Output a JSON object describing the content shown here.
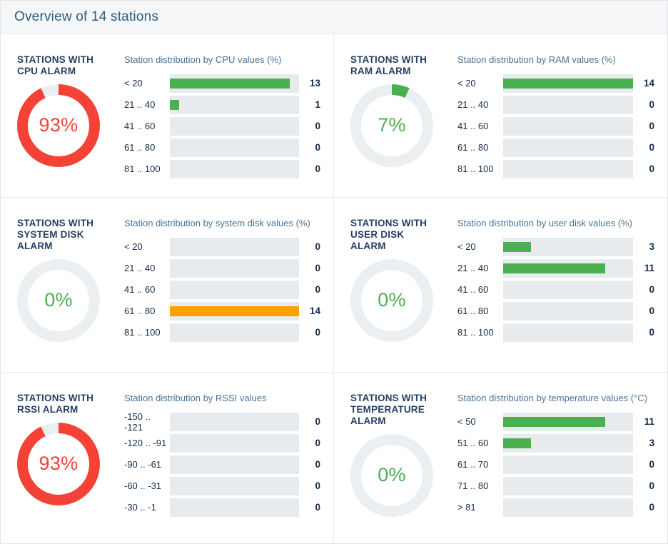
{
  "header": {
    "title": "Overview of 14 stations"
  },
  "total_stations": 14,
  "colors": {
    "green": "#4caf50",
    "red": "#f44336",
    "orange": "#ffa000",
    "donut_track": "#eceff1",
    "bar_track": "#e8ebee"
  },
  "panels": [
    {
      "alarm_title": "STATIONS WITH CPU ALARM",
      "percent": 93,
      "percent_label": "93%",
      "donut_color": "red",
      "percent_color": "red",
      "chart_title": "Station distribution by CPU values (%)",
      "max": 14,
      "rows": [
        {
          "label": "< 20",
          "value": 13,
          "color": "green"
        },
        {
          "label": "21 .. 40",
          "value": 1,
          "color": "green"
        },
        {
          "label": "41 .. 60",
          "value": 0,
          "color": "green"
        },
        {
          "label": "61 .. 80",
          "value": 0,
          "color": "green"
        },
        {
          "label": "81 .. 100",
          "value": 0,
          "color": "green"
        }
      ]
    },
    {
      "alarm_title": "STATIONS WITH RAM ALARM",
      "percent": 7,
      "percent_label": "7%",
      "donut_color": "green",
      "percent_color": "green",
      "chart_title": "Station distribution by RAM values (%)",
      "max": 14,
      "rows": [
        {
          "label": "< 20",
          "value": 14,
          "color": "green"
        },
        {
          "label": "21 .. 40",
          "value": 0,
          "color": "green"
        },
        {
          "label": "41 .. 60",
          "value": 0,
          "color": "green"
        },
        {
          "label": "61 .. 80",
          "value": 0,
          "color": "green"
        },
        {
          "label": "81 .. 100",
          "value": 0,
          "color": "green"
        }
      ]
    },
    {
      "alarm_title": "STATIONS WITH SYSTEM DISK ALARM",
      "percent": 0,
      "percent_label": "0%",
      "donut_color": "green",
      "percent_color": "green",
      "chart_title": "Station distribution by system disk values (%)",
      "max": 14,
      "rows": [
        {
          "label": "< 20",
          "value": 0,
          "color": "green"
        },
        {
          "label": "21 .. 40",
          "value": 0,
          "color": "green"
        },
        {
          "label": "41 .. 60",
          "value": 0,
          "color": "green"
        },
        {
          "label": "61 .. 80",
          "value": 14,
          "color": "orange"
        },
        {
          "label": "81 .. 100",
          "value": 0,
          "color": "green"
        }
      ]
    },
    {
      "alarm_title": "STATIONS WITH USER DISK ALARM",
      "percent": 0,
      "percent_label": "0%",
      "donut_color": "green",
      "percent_color": "green",
      "chart_title": "Station distribution by user disk values (%)",
      "max": 14,
      "rows": [
        {
          "label": "< 20",
          "value": 3,
          "color": "green"
        },
        {
          "label": "21 .. 40",
          "value": 11,
          "color": "green"
        },
        {
          "label": "41 .. 60",
          "value": 0,
          "color": "green"
        },
        {
          "label": "61 .. 80",
          "value": 0,
          "color": "green"
        },
        {
          "label": "81 .. 100",
          "value": 0,
          "color": "green"
        }
      ]
    },
    {
      "alarm_title": "STATIONS WITH RSSI ALARM",
      "percent": 93,
      "percent_label": "93%",
      "donut_color": "red",
      "percent_color": "red",
      "chart_title": "Station distribution by RSSI values",
      "max": 14,
      "rows": [
        {
          "label": "-150 .. -121",
          "value": 0,
          "color": "green"
        },
        {
          "label": "-120 .. -91",
          "value": 0,
          "color": "green"
        },
        {
          "label": "-90 .. -61",
          "value": 0,
          "color": "green"
        },
        {
          "label": "-60 .. -31",
          "value": 0,
          "color": "green"
        },
        {
          "label": "-30 .. -1",
          "value": 0,
          "color": "green"
        }
      ]
    },
    {
      "alarm_title": "STATIONS WITH TEMPERATURE ALARM",
      "percent": 0,
      "percent_label": "0%",
      "donut_color": "green",
      "percent_color": "green",
      "chart_title": "Station distribution by temperature values (°C)",
      "max": 14,
      "rows": [
        {
          "label": "< 50",
          "value": 11,
          "color": "green"
        },
        {
          "label": "51 .. 60",
          "value": 3,
          "color": "green"
        },
        {
          "label": "61 .. 70",
          "value": 0,
          "color": "green"
        },
        {
          "label": "71 .. 80",
          "value": 0,
          "color": "green"
        },
        {
          "label": "> 81",
          "value": 0,
          "color": "green"
        }
      ]
    }
  ],
  "chart_data": [
    {
      "type": "bar",
      "title": "Station distribution by CPU values (%)",
      "donut": {
        "label": "STATIONS WITH CPU ALARM",
        "percent": 93,
        "color": "#f44336"
      },
      "categories": [
        "< 20",
        "21 .. 40",
        "41 .. 60",
        "61 .. 80",
        "81 .. 100"
      ],
      "values": [
        13,
        1,
        0,
        0,
        0
      ],
      "xlim": [
        0,
        14
      ],
      "bar_color": "#4caf50"
    },
    {
      "type": "bar",
      "title": "Station distribution by RAM values (%)",
      "donut": {
        "label": "STATIONS WITH RAM ALARM",
        "percent": 7,
        "color": "#4caf50"
      },
      "categories": [
        "< 20",
        "21 .. 40",
        "41 .. 60",
        "61 .. 80",
        "81 .. 100"
      ],
      "values": [
        14,
        0,
        0,
        0,
        0
      ],
      "xlim": [
        0,
        14
      ],
      "bar_color": "#4caf50"
    },
    {
      "type": "bar",
      "title": "Station distribution by system disk values (%)",
      "donut": {
        "label": "STATIONS WITH SYSTEM DISK ALARM",
        "percent": 0,
        "color": "#eceff1"
      },
      "categories": [
        "< 20",
        "21 .. 40",
        "41 .. 60",
        "61 .. 80",
        "81 .. 100"
      ],
      "values": [
        0,
        0,
        0,
        14,
        0
      ],
      "xlim": [
        0,
        14
      ],
      "bar_color": "#ffa000"
    },
    {
      "type": "bar",
      "title": "Station distribution by user disk values (%)",
      "donut": {
        "label": "STATIONS WITH USER DISK ALARM",
        "percent": 0,
        "color": "#eceff1"
      },
      "categories": [
        "< 20",
        "21 .. 40",
        "41 .. 60",
        "61 .. 80",
        "81 .. 100"
      ],
      "values": [
        3,
        11,
        0,
        0,
        0
      ],
      "xlim": [
        0,
        14
      ],
      "bar_color": "#4caf50"
    },
    {
      "type": "bar",
      "title": "Station distribution by RSSI values",
      "donut": {
        "label": "STATIONS WITH RSSI ALARM",
        "percent": 93,
        "color": "#f44336"
      },
      "categories": [
        "-150 .. -121",
        "-120 .. -91",
        "-90 .. -61",
        "-60 .. -31",
        "-30 .. -1"
      ],
      "values": [
        0,
        0,
        0,
        0,
        0
      ],
      "xlim": [
        0,
        14
      ],
      "bar_color": "#4caf50"
    },
    {
      "type": "bar",
      "title": "Station distribution by temperature values (°C)",
      "donut": {
        "label": "STATIONS WITH TEMPERATURE ALARM",
        "percent": 0,
        "color": "#eceff1"
      },
      "categories": [
        "< 50",
        "51 .. 60",
        "61 .. 70",
        "71 .. 80",
        "> 81"
      ],
      "values": [
        11,
        3,
        0,
        0,
        0
      ],
      "xlim": [
        0,
        14
      ],
      "bar_color": "#4caf50"
    }
  ]
}
